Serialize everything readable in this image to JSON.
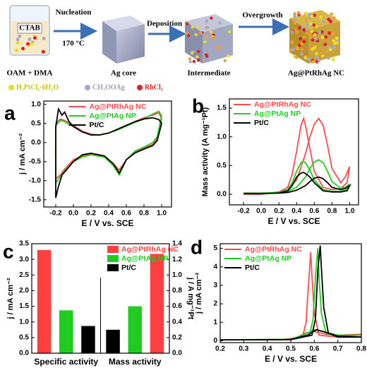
{
  "figure": {
    "schematic": {
      "beaker_label": "CTAB",
      "solvent": "OAM + DMA",
      "step1": "Nucleation",
      "temperature": "170 °C",
      "core": "Ag core",
      "step2": "Deposition",
      "intermediate": "Intermediate",
      "step3": "Overgrowth",
      "product": "Ag@PtRhAg NC",
      "precursors": [
        "H₂PtCl₆·6H₂O",
        "CH₃OOAg",
        "RhCl₃"
      ]
    }
  },
  "chart_data": [
    {
      "type": "line",
      "panel": "a",
      "xlabel": "E / V vs. SCE",
      "ylabel": "j / mA cm⁻²",
      "xlim": [
        -0.336,
        1.112
      ],
      "ylim": [
        -1.69,
        1.09
      ],
      "xticks": [
        -0.2,
        {
          "value": 0,
          "label": "0.0"
        },
        0.2,
        0.4,
        0.6,
        0.8,
        {
          "value": 1,
          "label": "1.0"
        }
      ],
      "yticks": [
        {
          "value": -1.5,
          "label": "-1.5"
        },
        {
          "value": -1,
          "label": "-1.0"
        },
        -0.5,
        {
          "value": 0,
          "label": "0.0"
        },
        0.5,
        {
          "value": 1,
          "label": "1.0"
        }
      ],
      "legend": "upper center",
      "series": [
        {
          "name": "Ag@PtRhAg NC",
          "color": "#ff4b4b",
          "x": [
            -0.2,
            -0.15,
            -0.1,
            0,
            0.1,
            0.2,
            0.3,
            0.4,
            0.5,
            0.6,
            0.7,
            0.8,
            0.9,
            0.97,
            1.0,
            0.95,
            0.9,
            0.8,
            0.7,
            0.6,
            0.52,
            0.45,
            0.35,
            0.2,
            0.1,
            0,
            -0.1,
            -0.15,
            -0.2,
            -0.2
          ],
          "values": [
            0.5,
            0.62,
            0.58,
            0.45,
            0.3,
            0.22,
            0.2,
            0.25,
            0.35,
            0.45,
            0.55,
            0.65,
            0.72,
            0.78,
            0.62,
            0.1,
            -0.05,
            -0.15,
            -0.25,
            -0.45,
            -0.72,
            -0.55,
            -0.35,
            -0.3,
            -0.35,
            -0.45,
            -0.7,
            -0.85,
            -0.95,
            0.5
          ]
        },
        {
          "name": "Ag@PtAg NP",
          "color": "#1fcc1f",
          "x": [
            -0.2,
            -0.15,
            -0.1,
            0,
            0.1,
            0.2,
            0.3,
            0.4,
            0.5,
            0.6,
            0.7,
            0.8,
            0.9,
            0.97,
            1.0,
            0.95,
            0.9,
            0.8,
            0.7,
            0.6,
            0.52,
            0.45,
            0.35,
            0.2,
            0.1,
            0,
            -0.1,
            -0.15,
            -0.2,
            -0.2
          ],
          "values": [
            0.45,
            0.58,
            0.55,
            0.42,
            0.28,
            0.2,
            0.2,
            0.25,
            0.33,
            0.43,
            0.53,
            0.62,
            0.75,
            0.82,
            0.7,
            0.15,
            0,
            -0.12,
            -0.22,
            -0.45,
            -0.85,
            -0.6,
            -0.38,
            -0.32,
            -0.38,
            -0.5,
            -0.75,
            -0.9,
            -1.05,
            0.45
          ]
        },
        {
          "name": "Pt/C",
          "color": "#000000",
          "x": [
            -0.2,
            -0.17,
            -0.13,
            -0.1,
            -0.05,
            0,
            0.1,
            0.2,
            0.3,
            0.4,
            0.5,
            0.6,
            0.7,
            0.8,
            0.9,
            0.97,
            1.0,
            0.95,
            0.9,
            0.8,
            0.7,
            0.6,
            0.52,
            0.45,
            0.35,
            0.2,
            0.1,
            0,
            -0.08,
            -0.13,
            -0.17,
            -0.2,
            -0.2
          ],
          "values": [
            0.4,
            0.88,
            0.72,
            0.8,
            0.55,
            0.42,
            0.28,
            0.2,
            0.2,
            0.25,
            0.35,
            0.45,
            0.55,
            0.62,
            0.65,
            0.6,
            0.5,
            0.05,
            -0.08,
            -0.17,
            -0.27,
            -0.45,
            -0.8,
            -0.55,
            -0.35,
            -0.28,
            -0.32,
            -0.5,
            -0.72,
            -0.85,
            -1.15,
            -1.45,
            0.4
          ]
        }
      ]
    },
    {
      "type": "line",
      "panel": "b",
      "xlabel": "E / V vs. SCE",
      "ylabel": "Mass activity (A mg⁻¹Pt)",
      "xlim": [
        -0.36,
        1.1
      ],
      "ylim": [
        -0.185,
        1.66
      ],
      "xticks": [
        -0.2,
        {
          "value": 0,
          "label": "0.0"
        },
        0.2,
        0.4,
        0.6,
        0.8,
        {
          "value": 1,
          "label": "1.0"
        }
      ],
      "yticks": [
        {
          "value": 0,
          "label": "0.0"
        },
        0.5,
        {
          "value": 1,
          "label": "1.0"
        },
        1.5
      ],
      "legend": "upper left",
      "series": [
        {
          "name": "Ag@PtRhAg NC",
          "color": "#ff4b4b",
          "x": [
            -0.2,
            0,
            0.2,
            0.3,
            0.4,
            0.5,
            0.55,
            0.6,
            0.65,
            0.7,
            0.75,
            0.8,
            0.9,
            0.95,
            1.0,
            0.97,
            0.9,
            0.8,
            0.7,
            0.6,
            0.55,
            0.5,
            0.48,
            0.45,
            0.4,
            0.35,
            0.3,
            0.2,
            0,
            -0.2
          ],
          "values": [
            0.02,
            0.02,
            0.03,
            0.08,
            0.25,
            0.7,
            1.0,
            1.22,
            1.32,
            1.2,
            0.85,
            0.45,
            0.2,
            0.3,
            0.48,
            0.2,
            0.1,
            0.08,
            0.12,
            0.4,
            0.8,
            1.2,
            1.32,
            1.2,
            0.75,
            0.35,
            0.12,
            0.04,
            0,
            0
          ]
        },
        {
          "name": "Ag@PtAg NP",
          "color": "#1fcc1f",
          "x": [
            -0.2,
            0,
            0.2,
            0.3,
            0.4,
            0.5,
            0.55,
            0.6,
            0.65,
            0.7,
            0.75,
            0.8,
            0.9,
            0.95,
            1.0,
            0.97,
            0.9,
            0.8,
            0.7,
            0.6,
            0.55,
            0.5,
            0.48,
            0.45,
            0.4,
            0.35,
            0.3,
            0.2,
            0,
            -0.2
          ],
          "values": [
            0.02,
            0.02,
            0.03,
            0.05,
            0.12,
            0.3,
            0.45,
            0.56,
            0.6,
            0.55,
            0.4,
            0.22,
            0.1,
            0.12,
            0.18,
            0.08,
            0.05,
            0.05,
            0.08,
            0.25,
            0.42,
            0.55,
            0.57,
            0.55,
            0.4,
            0.2,
            0.08,
            0.03,
            0.01,
            0.01
          ]
        },
        {
          "name": "Pt/C",
          "color": "#000000",
          "x": [
            -0.2,
            0,
            0.2,
            0.3,
            0.4,
            0.5,
            0.55,
            0.6,
            0.65,
            0.7,
            0.75,
            0.8,
            0.9,
            0.95,
            1.0,
            0.97,
            0.9,
            0.8,
            0.7,
            0.6,
            0.55,
            0.5,
            0.48,
            0.45,
            0.4,
            0.35,
            0.3,
            0.2,
            0,
            -0.2
          ],
          "values": [
            0.01,
            0.01,
            0.02,
            0.03,
            0.07,
            0.15,
            0.22,
            0.28,
            0.3,
            0.27,
            0.2,
            0.12,
            0.08,
            0.1,
            0.15,
            0.06,
            0.04,
            0.04,
            0.06,
            0.2,
            0.3,
            0.36,
            0.38,
            0.37,
            0.3,
            0.15,
            0.06,
            0.02,
            0.01,
            0.01
          ]
        }
      ]
    },
    {
      "type": "bar",
      "panel": "c",
      "ylabel": "j / mA cm⁻²",
      "y2label": "j / A mg⁻¹Pt",
      "categories": [
        "Specific activity",
        "Mass activity"
      ],
      "category_axis": [
        "y",
        "y2"
      ],
      "ylim": [
        0,
        3.5
      ],
      "y2lim": [
        0,
        1.4
      ],
      "yticks": [
        {
          "value": 0,
          "label": "0.0"
        },
        0.5,
        {
          "value": 1,
          "label": "1.0"
        },
        1.5,
        {
          "value": 2,
          "label": "2.0"
        },
        2.5,
        {
          "value": 3,
          "label": "3.0"
        },
        3.5
      ],
      "y2ticks": [
        {
          "value": 0,
          "label": "0.0"
        },
        0.2,
        0.4,
        0.6,
        0.8,
        {
          "value": 1,
          "label": "1.0"
        },
        1.2,
        1.4
      ],
      "legend": "upper right",
      "series": [
        {
          "name": "Ag@PtRhAg NC",
          "color": "#ff4040",
          "values": [
            3.3,
            1.27
          ]
        },
        {
          "name": "Ag@PtAg NP",
          "color": "#1fcc1f",
          "values": [
            1.37,
            0.6
          ]
        },
        {
          "name": "Pt/C",
          "color": "#000000",
          "values": [
            0.87,
            0.3
          ]
        }
      ]
    },
    {
      "type": "line",
      "panel": "d",
      "xlabel": "E / V vs. SCE",
      "ylabel": "j / mA cm⁻²",
      "xlim": [
        0.2,
        0.8
      ],
      "ylim": [
        -0.1,
        5.25
      ],
      "xticks": [
        0.2,
        0.3,
        0.4,
        0.5,
        0.6,
        0.7,
        0.8
      ],
      "yticks": [
        0,
        1,
        2,
        3,
        4,
        5
      ],
      "legend": "upper left",
      "series": [
        {
          "name": "Ag@PtRhAg NC",
          "color": "#ff4b4b",
          "x": [
            0.2,
            0.45,
            0.52,
            0.56,
            0.6,
            0.65,
            0.7,
            0.8,
            0.7,
            0.62,
            0.6,
            0.59,
            0.585,
            0.575,
            0.565,
            0.55,
            0.45,
            0.2
          ],
          "values": [
            0.05,
            0.05,
            0.15,
            0.4,
            0.5,
            0.35,
            0.3,
            0.35,
            0.2,
            0.3,
            1.5,
            3.5,
            4.8,
            3.0,
            1.0,
            0.2,
            0.05,
            0.05
          ]
        },
        {
          "name": "Ag@PtAg NP",
          "color": "#1fcc1f",
          "x": [
            0.2,
            0.5,
            0.56,
            0.6,
            0.64,
            0.7,
            0.8,
            0.7,
            0.65,
            0.63,
            0.62,
            0.615,
            0.605,
            0.595,
            0.58,
            0.5,
            0.2
          ],
          "values": [
            0.05,
            0.08,
            0.35,
            0.6,
            0.5,
            0.3,
            0.3,
            0.25,
            0.4,
            1.5,
            3.5,
            5.0,
            3.5,
            1.2,
            0.3,
            0.07,
            0.05
          ]
        },
        {
          "name": "Pt/C",
          "color": "#000000",
          "x": [
            0.2,
            0.5,
            0.57,
            0.61,
            0.65,
            0.7,
            0.8,
            0.7,
            0.66,
            0.64,
            0.63,
            0.625,
            0.615,
            0.605,
            0.59,
            0.5,
            0.2
          ],
          "values": [
            0.05,
            0.07,
            0.3,
            0.6,
            0.45,
            0.25,
            0.2,
            0.2,
            0.4,
            1.8,
            4.0,
            5.15,
            3.8,
            1.2,
            0.3,
            0.06,
            0.05
          ]
        }
      ]
    }
  ]
}
